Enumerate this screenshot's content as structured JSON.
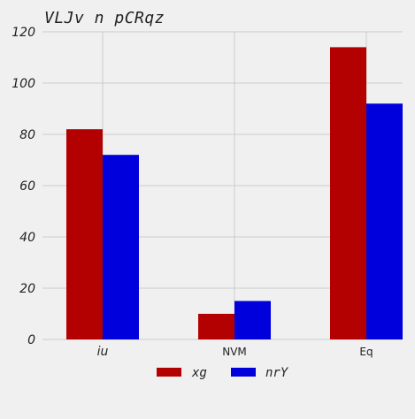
{
  "chart_data": {
    "type": "bar",
    "title": "VLJv n pCRqz",
    "categories": [
      "iu",
      "NVM",
      "Eq"
    ],
    "series": [
      {
        "name": "xg",
        "values": [
          82,
          10,
          114
        ],
        "color": "#b30000"
      },
      {
        "name": "nrY",
        "values": [
          72,
          15,
          92
        ],
        "color": "#0000dd"
      }
    ],
    "xlabel": "",
    "ylabel": "",
    "ylim": [
      0,
      120
    ],
    "yticks": [
      0,
      20,
      40,
      60,
      80,
      100,
      120
    ],
    "grid": true,
    "legend": "bottom-center",
    "background": "#f0f0f0",
    "grid_color": "#cbcbcb"
  }
}
